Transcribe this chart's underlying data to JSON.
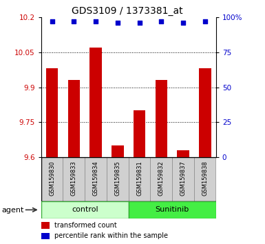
{
  "title": "GDS3109 / 1373381_at",
  "samples": [
    "GSM159830",
    "GSM159833",
    "GSM159834",
    "GSM159835",
    "GSM159831",
    "GSM159832",
    "GSM159837",
    "GSM159838"
  ],
  "transformed_counts": [
    9.98,
    9.93,
    10.07,
    9.65,
    9.8,
    9.93,
    9.63,
    9.98
  ],
  "percentile_ranks": [
    97,
    97,
    97,
    96,
    96,
    97,
    96,
    97
  ],
  "group_labels": [
    "control",
    "Sunitinib"
  ],
  "group_colors": [
    "#ccffcc",
    "#44ee44"
  ],
  "bar_color": "#cc0000",
  "dot_color": "#0000cc",
  "ylim_left": [
    9.6,
    10.2
  ],
  "ylim_right": [
    0,
    100
  ],
  "yticks_left": [
    9.6,
    9.75,
    9.9,
    10.05,
    10.2
  ],
  "yticks_right": [
    0,
    25,
    50,
    75,
    100
  ],
  "ytick_left_labels": [
    "9.6",
    "9.75",
    "9.9",
    "10.05",
    "10.2"
  ],
  "ytick_right_labels": [
    "0",
    "25",
    "50",
    "75",
    "100%"
  ],
  "ylabel_left_color": "#cc0000",
  "ylabel_right_color": "#0000cc",
  "grid_color": "#000000",
  "agent_label": "agent",
  "legend_bar_label": "transformed count",
  "legend_dot_label": "percentile rank within the sample",
  "tick_bg_color": "#d0d0d0"
}
